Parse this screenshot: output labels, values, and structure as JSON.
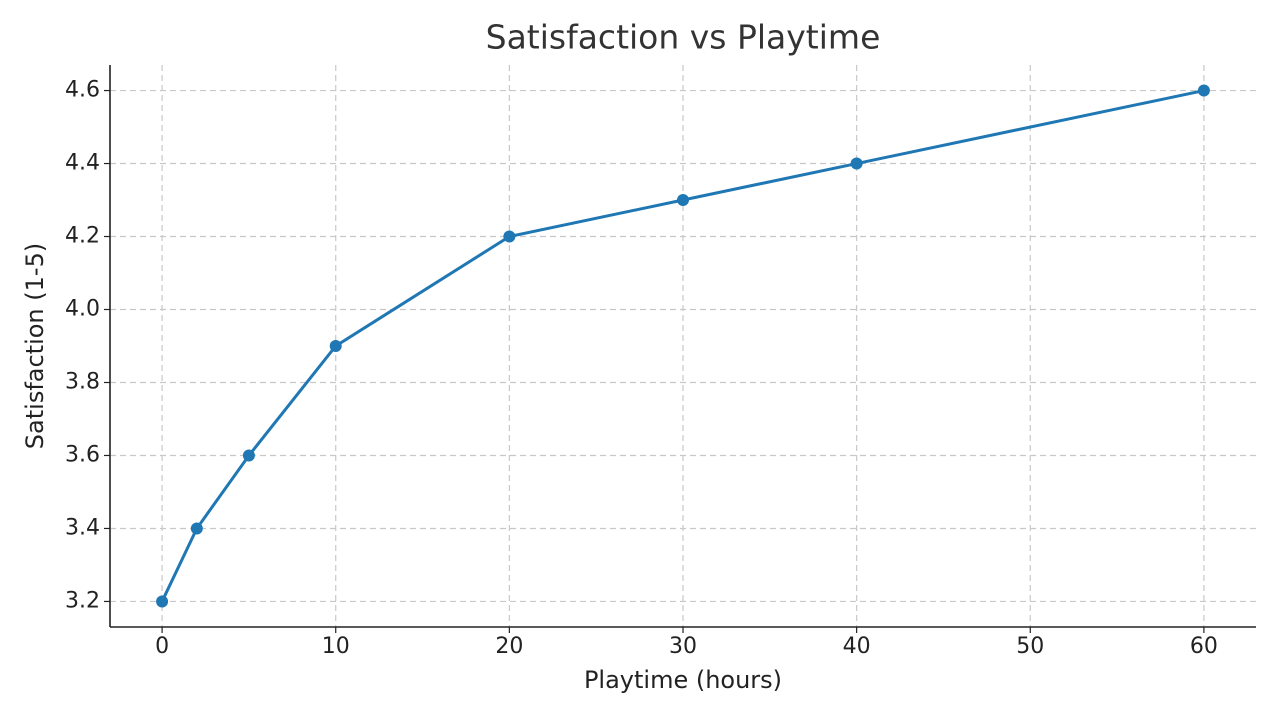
{
  "chart_data": {
    "type": "line",
    "title": "Satisfaction vs Playtime",
    "x_label": "Playtime (hours)",
    "y_label": "Satisfaction (1-5)",
    "x": [
      0,
      2,
      5,
      10,
      20,
      30,
      40,
      60
    ],
    "values": [
      3.2,
      3.4,
      3.6,
      3.9,
      4.2,
      4.3,
      4.4,
      4.6
    ],
    "color": "#1f77b4",
    "markers": true,
    "xlim": [
      -3,
      63
    ],
    "ylim": [
      3.13,
      4.67
    ],
    "xticks": [
      0,
      10,
      20,
      30,
      40,
      50,
      60
    ],
    "yticks": [
      3.2,
      3.4,
      3.6,
      3.8,
      {
        "value": 4,
        "label": "4.0"
      },
      4.2,
      4.4,
      4.6
    ],
    "grid": true
  }
}
